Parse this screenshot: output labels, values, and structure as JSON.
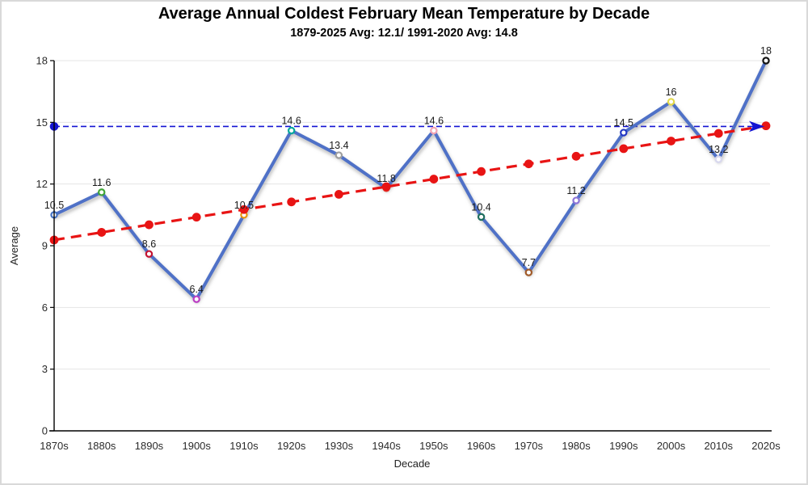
{
  "window": {
    "background": "#ffffff",
    "border_color": "#d9d9d9"
  },
  "chart_data": {
    "type": "line",
    "title": "Average Annual Coldest February Mean Temperature by Decade",
    "subtitle": "1879-2025 Avg: 12.1/ 1991-2020 Avg: 14.8",
    "xlabel": "Decade",
    "ylabel": "Average",
    "categories": [
      "1870s",
      "1880s",
      "1890s",
      "1900s",
      "1910s",
      "1920s",
      "1930s",
      "1940s",
      "1950s",
      "1960s",
      "1970s",
      "1980s",
      "1990s",
      "2000s",
      "2010s",
      "2020s"
    ],
    "ylim": [
      0,
      18
    ],
    "yticks": [
      0,
      3,
      6,
      9,
      12,
      15,
      18
    ],
    "grid": true,
    "legend": "none",
    "grid_color": "#e4e4e4",
    "axis_color": "#000000",
    "series": [
      {
        "name": "decade-average",
        "kind": "line-with-markers",
        "color": "#4f71c7",
        "values": [
          10.5,
          11.6,
          8.6,
          6.4,
          10.5,
          14.6,
          13.4,
          11.8,
          14.6,
          10.4,
          7.7,
          11.2,
          14.5,
          16,
          13.2,
          18
        ],
        "marker_fill": "#ffffff",
        "marker_colors": [
          "#4472c4",
          "#3fa535",
          "#c41230",
          "#bb3ec4",
          "#e8930c",
          "#00a79d",
          "#9e9e9e",
          "#e03c31",
          "#f2a3b3",
          "#1e6e5e",
          "#a05a28",
          "#8d75d8",
          "#2236c4",
          "#e3d94a",
          "#d8d8ee",
          "#141414"
        ],
        "show_data_labels": true
      },
      {
        "name": "linear-trend",
        "kind": "dashed-line-with-dots",
        "color": "#e81414",
        "values": [
          9.28,
          9.65,
          10.02,
          10.39,
          10.76,
          11.13,
          11.5,
          11.87,
          12.24,
          12.61,
          12.98,
          13.35,
          13.72,
          14.09,
          14.46,
          14.83
        ]
      },
      {
        "name": "avg-1991-2020-reference",
        "kind": "dashed-hline-with-arrow",
        "color": "#1414d2",
        "value": 14.8
      }
    ]
  }
}
